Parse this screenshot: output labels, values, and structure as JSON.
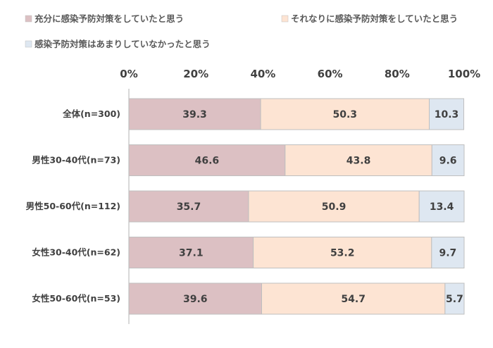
{
  "chart_data": {
    "type": "bar",
    "orientation": "horizontal",
    "stacked": true,
    "xlim": [
      0,
      100
    ],
    "x_ticks": [
      "0%",
      "20%",
      "40%",
      "60%",
      "80%",
      "100%"
    ],
    "legend_position": "top",
    "categories": [
      "全体(n=300)",
      "男性30-40代(n=73)",
      "男性50-60代(n=112)",
      "女性30-40代(n=62)",
      "女性50-60代(n=53)"
    ],
    "series": [
      {
        "name": "充分に感染予防対策をしていたと思う",
        "color": "#dcc0c3",
        "values": [
          39.3,
          46.6,
          35.7,
          37.1,
          39.6
        ],
        "labels": [
          "39.3",
          "46.6",
          "35.7",
          "37.1",
          "39.6"
        ]
      },
      {
        "name": "それなりに感染予防対策をしていたと思う",
        "color": "#fde4d3",
        "values": [
          50.3,
          43.8,
          50.9,
          53.2,
          54.7
        ],
        "labels": [
          "50.3",
          "43.8",
          "50.9",
          "53.2",
          "54.7"
        ]
      },
      {
        "name": "感染予防対策はあまりしていなかったと思う",
        "color": "#dee7f1",
        "values": [
          10.3,
          9.6,
          13.4,
          9.7,
          5.7
        ],
        "labels": [
          "10.3",
          "9.6",
          "13.4",
          "9.7",
          "5.7"
        ]
      }
    ],
    "axis_color": "#bfbfbf",
    "bar_border_color": "#bfbfbf"
  }
}
